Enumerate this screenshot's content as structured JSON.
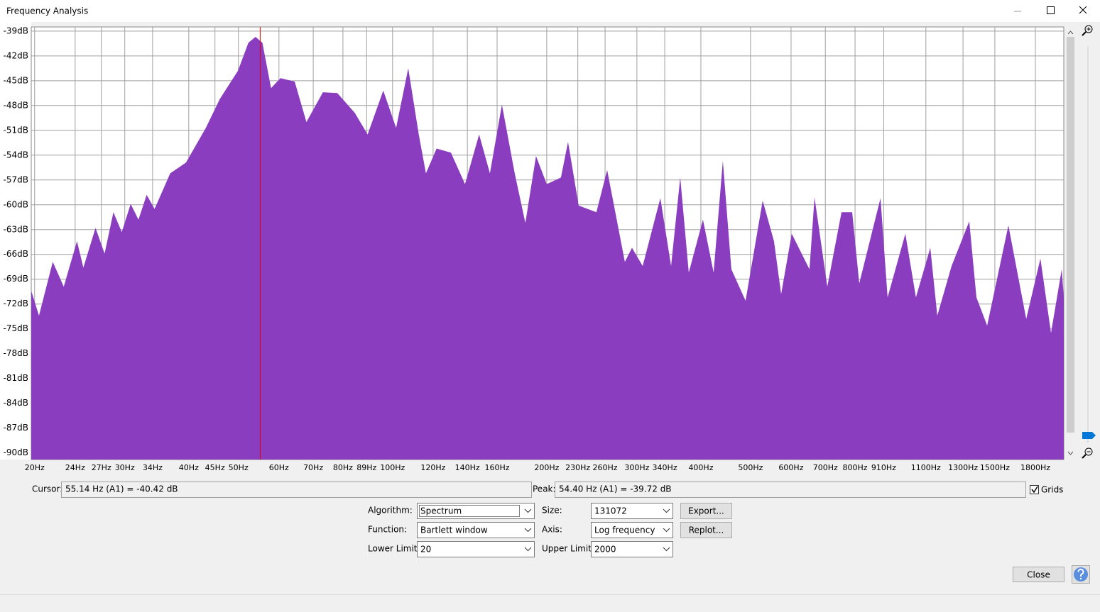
{
  "window": {
    "title": "Frequency Analysis"
  },
  "readouts": {
    "cursor_label": "Cursor:",
    "cursor": "55.14 Hz (A1) = -40.42 dB",
    "peak_label": "Peak:",
    "peak": "54.40 Hz (A1) = -39.72 dB",
    "grids": "Grids"
  },
  "controls": {
    "algorithm_label": "Algorithm:",
    "algorithm": "Spectrum",
    "function_label": "Function:",
    "function": "Bartlett window",
    "lower_label": "Lower Limit:",
    "lower": "20",
    "size_label": "Size:",
    "size": "131072",
    "axis_label": "Axis:",
    "axis": "Log frequency",
    "upper_label": "Upper Limit:",
    "upper": "2000",
    "export": "Export...",
    "replot": "Replot...",
    "close": "Close"
  },
  "chart_data": {
    "type": "area",
    "xscale": "log",
    "color": "#8a3dbf",
    "grid": true,
    "cursor": 55.14,
    "xlim": [
      19.7,
      2045
    ],
    "ylim": [
      -90.8,
      -38.5
    ],
    "x": [
      19.7,
      20.4,
      21.7,
      22.8,
      24.2,
      24.9,
      26.3,
      27.4,
      28.5,
      29.6,
      30.8,
      31.9,
      33.1,
      34.3,
      36.8,
      39.5,
      43.2,
      46.0,
      49.9,
      52.3,
      54.0,
      55.7,
      57.9,
      60.4,
      64.4,
      67.9,
      73.1,
      78.0,
      84.4,
      89.4,
      95.9,
      101.6,
      107.3,
      112.5,
      116.2,
      121.9,
      130.0,
      138.5,
      147.6,
      154.9,
      163.5,
      173.2,
      181.7,
      190.6,
      200.0,
      213.2,
      220.1,
      230.9,
      250.0,
      262.5,
      284.2,
      293.5,
      307.9,
      333.4,
      349.8,
      364.6,
      378.8,
      403.7,
      423.6,
      441.5,
      458.8,
      489.0,
      528.1,
      555.7,
      573.8,
      601.9,
      651.8,
      666.7,
      706.1,
      752.7,
      789.6,
      815.2,
      897.0,
      926.1,
      1003,
      1052,
      1122,
      1158,
      1235,
      1337,
      1381,
      1449,
      1594,
      1727,
      1841,
      1931,
      2026,
      2045
    ],
    "values": [
      -70.4,
      -73.4,
      -66.9,
      -69.9,
      -64.4,
      -67.6,
      -62.8,
      -65.9,
      -60.9,
      -63.3,
      -59.9,
      -61.8,
      -58.8,
      -60.5,
      -56.2,
      -54.9,
      -50.7,
      -47.2,
      -43.8,
      -40.4,
      -39.7,
      -40.4,
      -45.9,
      -44.7,
      -45.1,
      -50.0,
      -46.4,
      -46.5,
      -48.9,
      -51.5,
      -46.2,
      -50.7,
      -43.5,
      -51.5,
      -56.2,
      -53.2,
      -53.7,
      -57.5,
      -51.5,
      -56.2,
      -47.9,
      -56.2,
      -62.2,
      -54.1,
      -57.5,
      -56.7,
      -52.4,
      -60.1,
      -60.9,
      -55.8,
      -66.9,
      -65.2,
      -67.4,
      -59.2,
      -67.4,
      -56.7,
      -68.2,
      -61.8,
      -68.2,
      -54.7,
      -67.8,
      -71.6,
      -59.5,
      -64.4,
      -70.8,
      -63.5,
      -67.8,
      -59.1,
      -69.9,
      -60.9,
      -60.9,
      -69.5,
      -59.2,
      -71.2,
      -63.5,
      -71.2,
      -65.2,
      -73.4,
      -67.4,
      -62.0,
      -71.2,
      -74.6,
      -62.5,
      -73.8,
      -66.5,
      -75.5,
      -67.8,
      -71.2
    ],
    "yticks": [
      {
        "value": -39,
        "label": "-39dB"
      },
      {
        "value": -42,
        "label": "-42dB"
      },
      {
        "value": -45,
        "label": "-45dB"
      },
      {
        "value": -48,
        "label": "-48dB"
      },
      {
        "value": -51,
        "label": "-51dB"
      },
      {
        "value": -54,
        "label": "-54dB"
      },
      {
        "value": -57,
        "label": "-57dB"
      },
      {
        "value": -60,
        "label": "-60dB"
      },
      {
        "value": -63,
        "label": "-63dB"
      },
      {
        "value": -66,
        "label": "-66dB"
      },
      {
        "value": -69,
        "label": "-69dB"
      },
      {
        "value": -72,
        "label": "-72dB"
      },
      {
        "value": -75,
        "label": "-75dB"
      },
      {
        "value": -78,
        "label": "-78dB"
      },
      {
        "value": -81,
        "label": "-81dB"
      },
      {
        "value": -84,
        "label": "-84dB"
      },
      {
        "value": -87,
        "label": "-87dB"
      },
      {
        "value": -90,
        "label": "-90dB"
      }
    ],
    "xticks": [
      {
        "value": 20,
        "label": "20Hz"
      },
      {
        "value": 24,
        "label": "24Hz"
      },
      {
        "value": 27,
        "label": "27Hz"
      },
      {
        "value": 30,
        "label": "30Hz"
      },
      {
        "value": 34,
        "label": "34Hz"
      },
      {
        "value": 40,
        "label": "40Hz"
      },
      {
        "value": 45,
        "label": "45Hz"
      },
      {
        "value": 50,
        "label": "50Hz"
      },
      {
        "value": 60,
        "label": "60Hz"
      },
      {
        "value": 70,
        "label": "70Hz"
      },
      {
        "value": 80,
        "label": "80Hz"
      },
      {
        "value": 89,
        "label": "89Hz"
      },
      {
        "value": 100,
        "label": "100Hz"
      },
      {
        "value": 120,
        "label": "120Hz"
      },
      {
        "value": 140,
        "label": "140Hz"
      },
      {
        "value": 160,
        "label": "160Hz"
      },
      {
        "value": 200,
        "label": "200Hz"
      },
      {
        "value": 230,
        "label": "230Hz"
      },
      {
        "value": 260,
        "label": "260Hz"
      },
      {
        "value": 300,
        "label": "300Hz"
      },
      {
        "value": 340,
        "label": "340Hz"
      },
      {
        "value": 400,
        "label": "400Hz"
      },
      {
        "value": 500,
        "label": "500Hz"
      },
      {
        "value": 600,
        "label": "600Hz"
      },
      {
        "value": 700,
        "label": "700Hz"
      },
      {
        "value": 800,
        "label": "800Hz"
      },
      {
        "value": 910,
        "label": "910Hz"
      },
      {
        "value": 1100,
        "label": "1100Hz"
      },
      {
        "value": 1300,
        "label": "1300Hz"
      },
      {
        "value": 1500,
        "label": "1500Hz"
      },
      {
        "value": 1800,
        "label": "1800Hz"
      }
    ]
  }
}
